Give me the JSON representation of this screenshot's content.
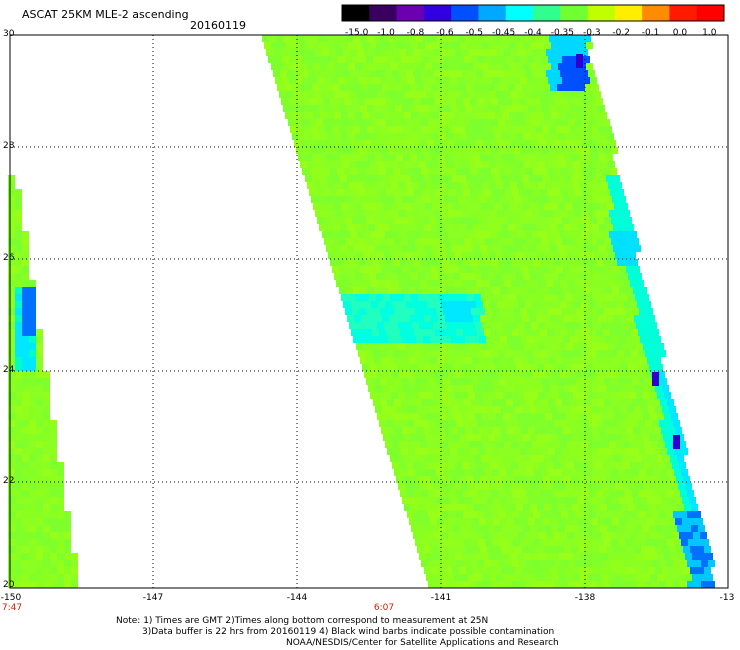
{
  "header": {
    "title": "ASCAT 25KM MLE-2 ascending",
    "date": "20160119"
  },
  "colorbar": {
    "tick_labels": [
      "-15.0",
      "-1.0",
      "-0.8",
      "-0.6",
      "-0.5",
      "-0.45",
      "-0.4",
      "-0.35",
      "-0.3",
      "-0.2",
      "-0.1",
      "0.0",
      "1.0"
    ],
    "colors": [
      "#000000",
      "#3a0060",
      "#6a00b0",
      "#3000e0",
      "#0050ff",
      "#00a8ff",
      "#00ffff",
      "#30ff90",
      "#70ff30",
      "#c0ff00",
      "#ffee00",
      "#ff8c00",
      "#ff1a00",
      "#ff0000"
    ]
  },
  "map": {
    "lat_labels": [
      "30",
      "28",
      "26",
      "24",
      "22",
      "20"
    ],
    "lon_labels": [
      "-150",
      "-147",
      "-144",
      "-141",
      "-138",
      "-13"
    ],
    "time_labels": [
      {
        "text": "7:47",
        "lon": -150
      },
      {
        "text": "6:07",
        "lon": -142
      }
    ]
  },
  "notes": {
    "line1": "Note: 1) Times are GMT 2)Times along bottom correspond to measurement at 25N",
    "line2": "3)Data buffer is 22 hrs from 20160119 4) Black wind barbs indicate possible contamination",
    "line3": "NOAA/NESDIS/Center for Satellite Applications and Research"
  }
}
